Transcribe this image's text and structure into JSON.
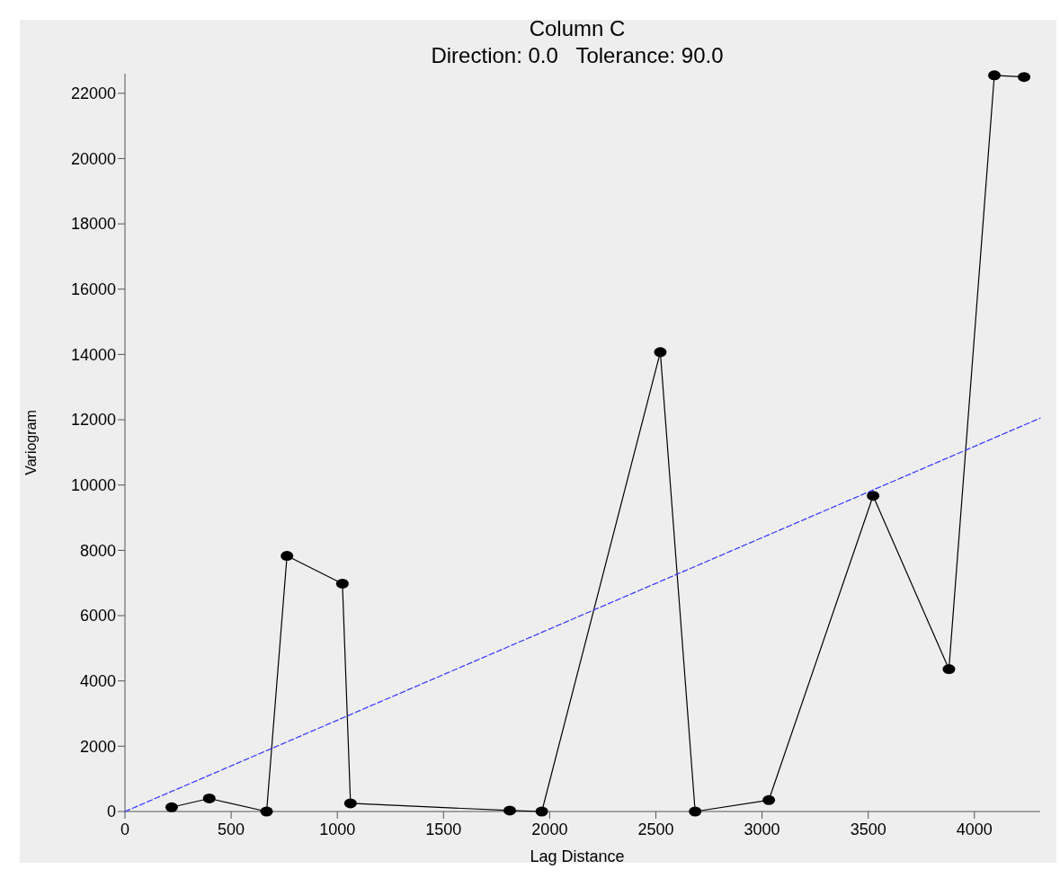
{
  "chart_data": {
    "type": "line",
    "title": "Column C",
    "subtitle": "Direction: 0.0   Tolerance: 90.0",
    "xlabel": "Lag Distance",
    "ylabel": "Variogram",
    "xlim": [
      0,
      4310
    ],
    "ylim": [
      0,
      22600
    ],
    "xticks": [
      0,
      500,
      1000,
      1500,
      2000,
      2500,
      3000,
      3500,
      4000
    ],
    "yticks": [
      0,
      2000,
      4000,
      6000,
      8000,
      10000,
      12000,
      14000,
      16000,
      18000,
      20000,
      22000
    ],
    "grid": false,
    "series": [
      {
        "color": "#000000",
        "marker": "circle",
        "line_style": "solid",
        "x": [
          220,
          397,
          667,
          763,
          1024,
          1062,
          1812,
          1963,
          2521,
          2685,
          3032,
          3523,
          3880,
          4094,
          4234
        ],
        "values": [
          130,
          400,
          0,
          7830,
          6980,
          250,
          30,
          0,
          14070,
          0,
          350,
          9670,
          4360,
          22550,
          22500
        ]
      },
      {
        "type": "line",
        "color": "#3333ff",
        "marker": "none",
        "line_style": "dashed",
        "x": [
          0,
          4310
        ],
        "values": [
          0,
          12050
        ]
      }
    ]
  }
}
